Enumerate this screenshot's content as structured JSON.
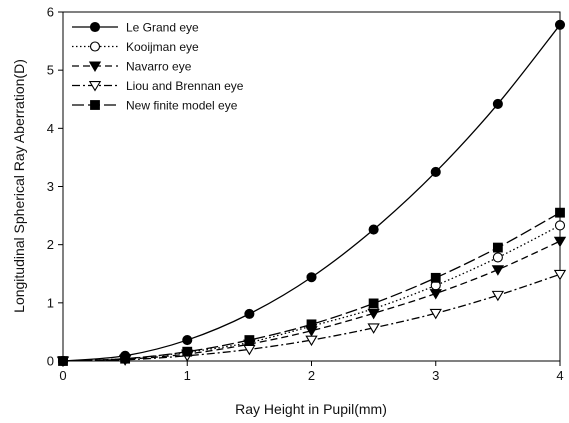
{
  "chart_data": {
    "type": "line",
    "title": "",
    "xlabel": "Ray Height in Pupil(mm)",
    "ylabel": "Longitudinal Spherical Ray Aberration(D)",
    "xlim": [
      0,
      4
    ],
    "ylim": [
      0,
      6
    ],
    "xticks": [
      0,
      1,
      2,
      3,
      4
    ],
    "yticks": [
      0,
      1,
      2,
      3,
      4,
      5,
      6
    ],
    "grid": false,
    "legend_position": "top-left",
    "x": [
      0,
      0.5,
      1,
      1.5,
      2,
      2.5,
      3,
      3.5,
      4
    ],
    "series": [
      {
        "name": "Le Grand eye",
        "marker": "filled-circle",
        "line": "solid",
        "values": [
          0,
          0.09,
          0.36,
          0.81,
          1.44,
          2.26,
          3.25,
          4.42,
          5.78
        ]
      },
      {
        "name": "Kooijman eye",
        "marker": "open-circle",
        "line": "dotted",
        "values": [
          0,
          0.04,
          0.15,
          0.32,
          0.6,
          0.9,
          1.3,
          1.78,
          2.33
        ]
      },
      {
        "name": "Navarro eye",
        "marker": "filled-triangle-down",
        "line": "dashed",
        "values": [
          0,
          0.03,
          0.12,
          0.29,
          0.52,
          0.82,
          1.16,
          1.57,
          2.06
        ]
      },
      {
        "name": "Liou and Brennan eye",
        "marker": "open-triangle-down",
        "line": "dash-dot",
        "values": [
          0,
          0.02,
          0.09,
          0.2,
          0.36,
          0.57,
          0.82,
          1.13,
          1.49
        ]
      },
      {
        "name": "New finite model eye",
        "marker": "filled-square",
        "line": "long-dash",
        "values": [
          0,
          0.04,
          0.16,
          0.36,
          0.63,
          0.99,
          1.43,
          1.95,
          2.55
        ]
      }
    ]
  }
}
